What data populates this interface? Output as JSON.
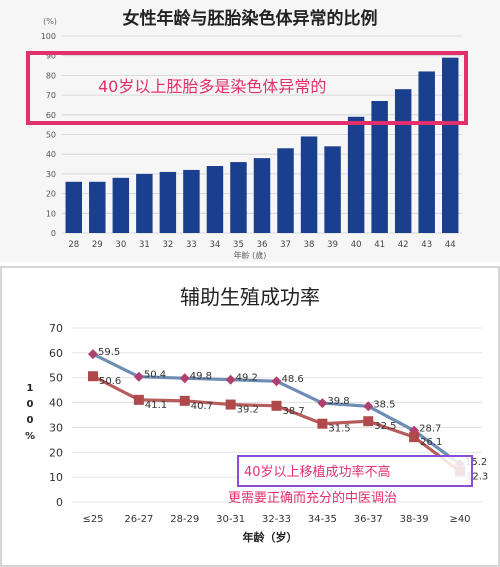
{
  "colors": {
    "bar": "#1b3f8f",
    "annotation_box_1": "#e2306c",
    "annotation_text_1": "#e2306c",
    "line_top": "#6d8db4",
    "marker_top": "#b04070",
    "line_bottom": "#b85b5b",
    "marker_bottom": "#b04a4a",
    "annotation_box_2": "#8a4fd6",
    "annotation_text_2": "#e2306c"
  },
  "chart_data": [
    {
      "type": "bar",
      "title": "女性年龄与胚胎染色体异常的比例",
      "ylabel": "(%)",
      "xlabel": "年齡 (歲)",
      "categories": [
        "28",
        "29",
        "30",
        "31",
        "32",
        "33",
        "34",
        "35",
        "36",
        "37",
        "38",
        "39",
        "40",
        "41",
        "42",
        "43",
        "44"
      ],
      "values": [
        26,
        26,
        28,
        30,
        31,
        32,
        34,
        36,
        38,
        43,
        49,
        44,
        59,
        67,
        73,
        82,
        89
      ],
      "ylim": [
        0,
        100
      ],
      "yticks": [
        "0",
        "10",
        "20",
        "30",
        "40",
        "50",
        "60",
        "70",
        "80",
        "90",
        "100"
      ],
      "grid": true,
      "annotation": "40岁以上胚胎多是染色体异常的"
    },
    {
      "type": "line",
      "title": "辅助生殖成功率",
      "ylabel": "100%",
      "xlabel": "年龄（岁）",
      "categories": [
        "≤25",
        "26-27",
        "28-29",
        "30-31",
        "32-33",
        "34-35",
        "36-37",
        "38-39",
        "≥40"
      ],
      "ylim": [
        0,
        70
      ],
      "yticks": [
        "0",
        "10",
        "20",
        "30",
        "40",
        "50",
        "60",
        "70"
      ],
      "grid": true,
      "series": [
        {
          "values": [
            59.5,
            50.4,
            49.8,
            49.2,
            48.6,
            39.8,
            38.5,
            28.7,
            15.2
          ],
          "labels": [
            "59.5",
            "50.4",
            "49.8",
            "49.2",
            "48.6",
            "39.8",
            "38.5",
            "28.7",
            "15.2"
          ]
        },
        {
          "values": [
            50.6,
            41.1,
            40.7,
            39.2,
            38.7,
            31.5,
            32.5,
            26.1,
            12.3
          ],
          "labels": [
            "50.6",
            "41.1",
            "40.7",
            "39.2",
            "38.7",
            "31.5",
            "32.5",
            "26.1",
            "12.3"
          ]
        }
      ],
      "annotation_line1": "40岁以上移植成功率不高",
      "annotation_line2": "更需要正确而充分的中医调治"
    }
  ]
}
